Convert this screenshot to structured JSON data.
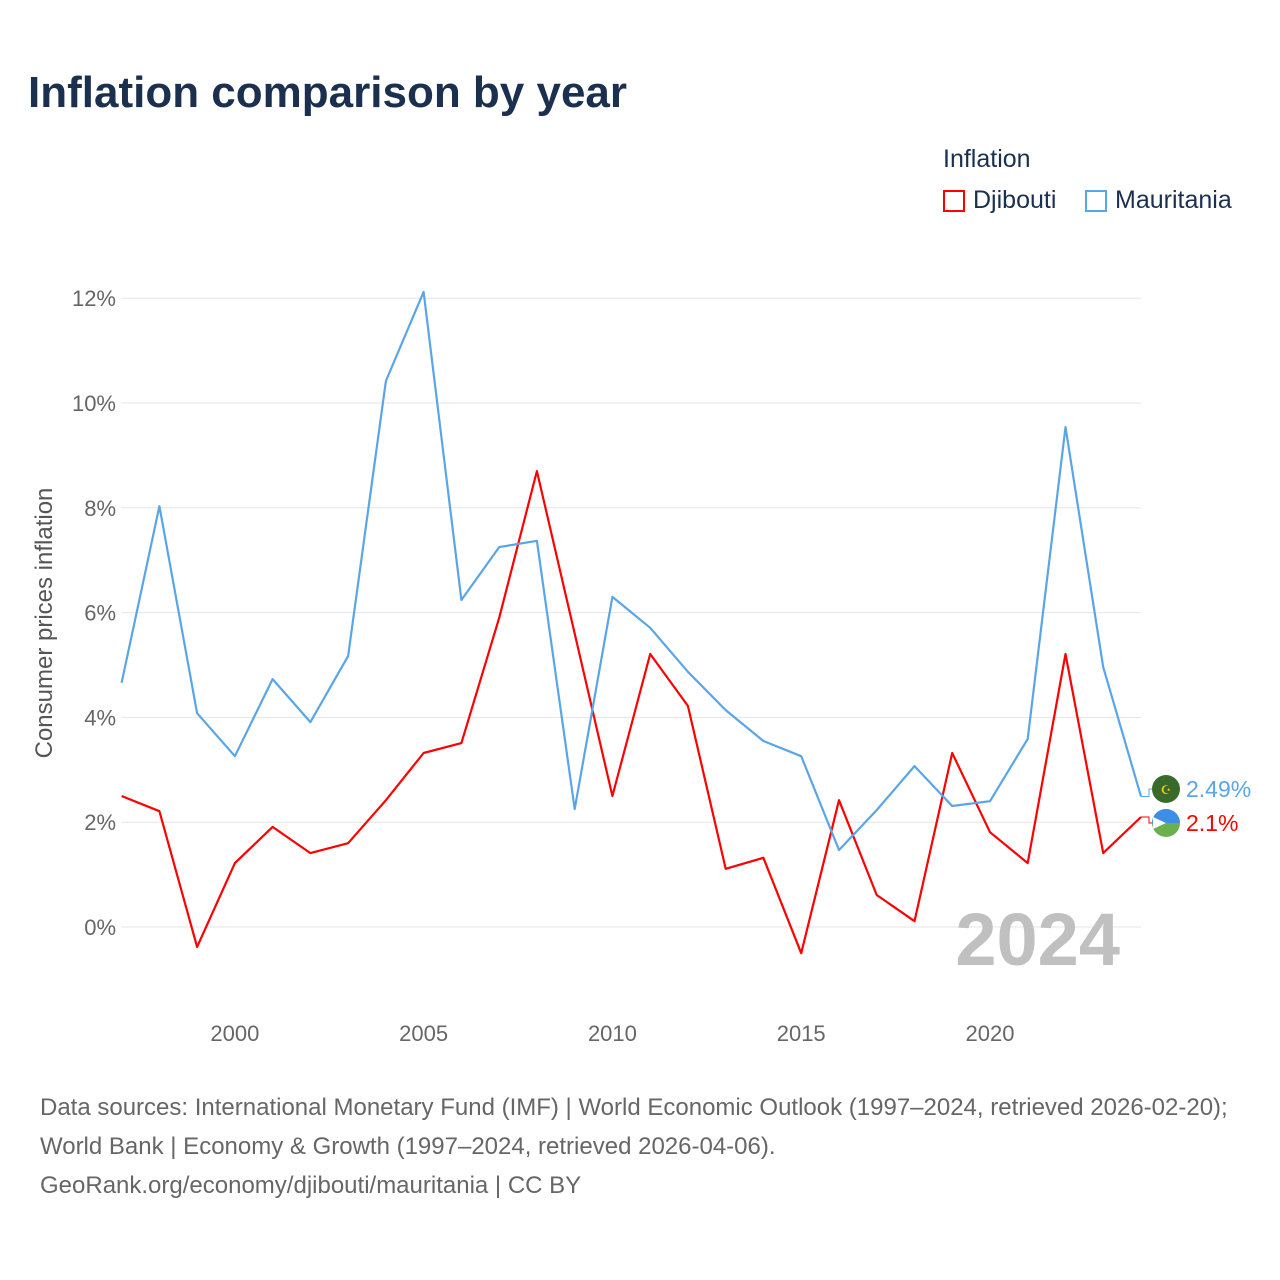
{
  "chart_data": {
    "type": "line",
    "title": "Inflation comparison by year",
    "ylabel": "Consumer prices inflation",
    "xlabel": "",
    "legend_title": "Inflation",
    "legend_position": "top-right",
    "x": [
      1997,
      1998,
      1999,
      2000,
      2001,
      2002,
      2003,
      2004,
      2005,
      2006,
      2007,
      2008,
      2009,
      2010,
      2011,
      2012,
      2013,
      2014,
      2015,
      2016,
      2017,
      2018,
      2019,
      2020,
      2021,
      2022,
      2023,
      2024
    ],
    "xlim": [
      1997,
      2024
    ],
    "ylim": [
      -1.3,
      12.5
    ],
    "x_ticks": [
      2000,
      2005,
      2010,
      2015,
      2020
    ],
    "x_tick_labels": [
      "2000",
      "2005",
      "2010",
      "2015",
      "2020"
    ],
    "y_ticks": [
      0,
      2,
      4,
      6,
      8,
      10,
      12
    ],
    "y_tick_labels": [
      "0%",
      "2%",
      "4%",
      "6%",
      "8%",
      "10%",
      "12%"
    ],
    "grid": true,
    "year_watermark": "2024",
    "series": [
      {
        "name": "Djibouti",
        "color": "#ff0000",
        "end_label": "2.1%",
        "values": [
          2.5,
          2.21,
          -0.38,
          1.22,
          1.91,
          1.41,
          1.6,
          2.42,
          3.32,
          3.51,
          5.9,
          8.7,
          5.6,
          2.5,
          5.21,
          4.22,
          1.11,
          1.32,
          -0.5,
          2.42,
          0.61,
          0.11,
          3.32,
          1.81,
          1.22,
          5.21,
          1.41,
          2.1
        ]
      },
      {
        "name": "Mauritania",
        "color": "#5aa5e8",
        "end_label": "2.49%",
        "values": [
          4.66,
          8.03,
          4.08,
          3.26,
          4.73,
          3.91,
          5.17,
          10.42,
          12.12,
          6.24,
          7.25,
          7.37,
          2.25,
          6.3,
          5.71,
          4.87,
          4.14,
          3.55,
          3.26,
          1.47,
          2.23,
          3.07,
          2.31,
          2.4,
          3.59,
          9.54,
          4.96,
          2.49
        ]
      }
    ]
  },
  "source_text": "Data sources: International Monetary Fund (IMF) | World Economic Outlook (1997–2024, retrieved 2026-02-20); World Bank | Economy & Growth (1997–2024, retrieved 2026-04-06).",
  "source_link": "GeoRank.org/economy/djibouti/mauritania | CC BY"
}
